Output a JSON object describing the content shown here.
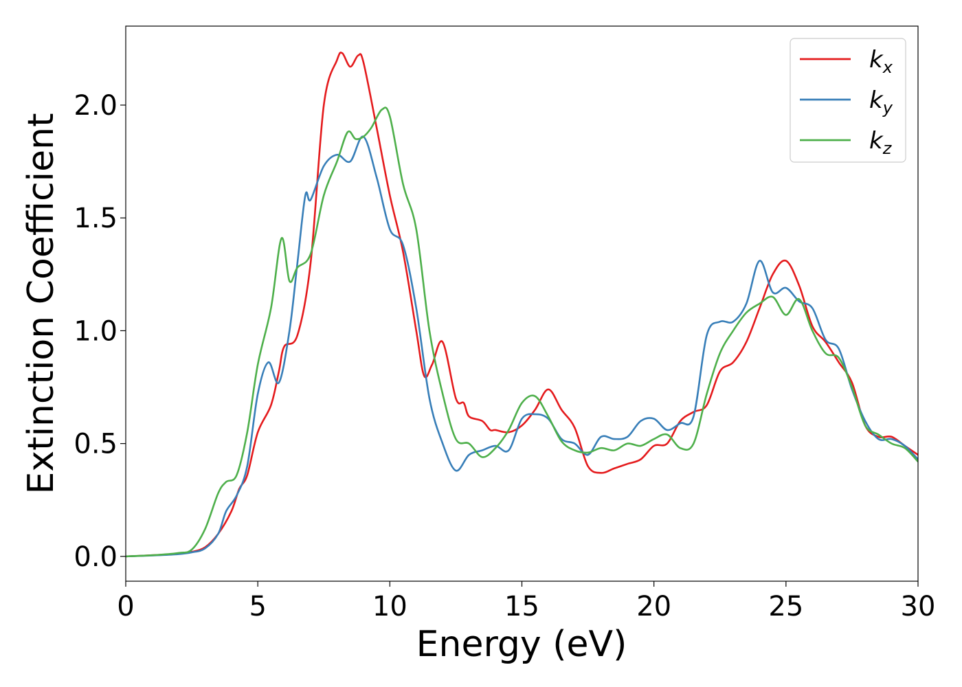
{
  "chart_data": {
    "type": "line",
    "xlabel": "Energy (eV)",
    "ylabel": "Extinction Coefficient",
    "xlim": [
      0,
      30
    ],
    "ylim": [
      -0.11,
      2.35
    ],
    "xticks": [
      0,
      5,
      10,
      15,
      20,
      25,
      30
    ],
    "xtick_labels": [
      "0",
      "5",
      "10",
      "15",
      "20",
      "25",
      "30"
    ],
    "yticks": [
      0.0,
      0.5,
      1.0,
      1.5,
      2.0
    ],
    "ytick_labels": [
      "0.0",
      "0.5",
      "1.0",
      "1.5",
      "2.0"
    ],
    "grid": false,
    "legend_position": "top-right",
    "series": [
      {
        "name": "k",
        "subscript": "x",
        "color": "#e41a1c",
        "x": [
          0,
          1,
          2,
          2.5,
          3,
          3.5,
          4,
          4.3,
          4.6,
          5,
          5.5,
          5.8,
          6,
          6.5,
          7,
          7.5,
          8,
          8.2,
          8.5,
          8.8,
          9,
          9.5,
          10,
          10.5,
          11,
          11.3,
          11.6,
          12,
          12.5,
          12.8,
          13,
          13.5,
          13.8,
          14,
          14.5,
          15,
          15.5,
          16,
          16.5,
          17,
          17.5,
          18,
          18.5,
          19,
          19.5,
          20,
          20.5,
          21,
          21.5,
          22,
          22.5,
          23,
          23.5,
          24,
          24.5,
          25,
          25.5,
          26,
          26.5,
          27,
          27.5,
          28,
          28.5,
          29,
          29.5,
          30
        ],
        "y": [
          0,
          0.005,
          0.012,
          0.02,
          0.04,
          0.1,
          0.2,
          0.3,
          0.36,
          0.55,
          0.67,
          0.82,
          0.93,
          0.98,
          1.3,
          2.0,
          2.2,
          2.23,
          2.17,
          2.22,
          2.19,
          1.9,
          1.6,
          1.35,
          1.0,
          0.8,
          0.85,
          0.95,
          0.7,
          0.68,
          0.62,
          0.6,
          0.56,
          0.56,
          0.55,
          0.58,
          0.65,
          0.74,
          0.65,
          0.57,
          0.4,
          0.37,
          0.39,
          0.41,
          0.43,
          0.49,
          0.5,
          0.6,
          0.64,
          0.67,
          0.82,
          0.86,
          0.95,
          1.1,
          1.25,
          1.31,
          1.2,
          1.02,
          0.95,
          0.86,
          0.77,
          0.58,
          0.53,
          0.53,
          0.49,
          0.45
        ]
      },
      {
        "name": "k",
        "subscript": "y",
        "color": "#377eb8",
        "x": [
          0,
          1,
          2,
          2.5,
          3,
          3.5,
          3.8,
          4.2,
          4.6,
          5,
          5.4,
          5.8,
          6.2,
          6.5,
          6.8,
          7,
          7.5,
          8,
          8.5,
          9,
          9.5,
          10,
          10.5,
          11,
          11.5,
          12,
          12.5,
          13,
          13.5,
          14,
          14.5,
          15,
          15.5,
          16,
          16.5,
          17,
          17.5,
          18,
          18.5,
          19,
          19.5,
          20,
          20.5,
          21,
          21.5,
          22,
          22.5,
          23,
          23.5,
          24,
          24.5,
          25,
          25.5,
          26,
          26.5,
          27,
          27.5,
          28,
          28.5,
          29,
          29.5,
          30
        ],
        "y": [
          0,
          0.004,
          0.01,
          0.018,
          0.035,
          0.1,
          0.2,
          0.27,
          0.4,
          0.72,
          0.86,
          0.77,
          1.0,
          1.3,
          1.6,
          1.58,
          1.73,
          1.78,
          1.75,
          1.86,
          1.68,
          1.45,
          1.38,
          1.1,
          0.7,
          0.5,
          0.38,
          0.45,
          0.47,
          0.49,
          0.47,
          0.61,
          0.63,
          0.61,
          0.52,
          0.5,
          0.45,
          0.53,
          0.52,
          0.53,
          0.6,
          0.61,
          0.56,
          0.59,
          0.62,
          0.98,
          1.04,
          1.04,
          1.12,
          1.31,
          1.17,
          1.19,
          1.13,
          1.1,
          0.96,
          0.92,
          0.74,
          0.6,
          0.52,
          0.52,
          0.49,
          0.43
        ]
      },
      {
        "name": "k",
        "subscript": "z",
        "color": "#4daf4a",
        "x": [
          0,
          1,
          2,
          2.5,
          3,
          3.5,
          3.8,
          4.2,
          4.6,
          5,
          5.5,
          5.9,
          6.2,
          6.5,
          7,
          7.5,
          8,
          8.4,
          8.7,
          9,
          9.3,
          9.7,
          10,
          10.5,
          11,
          11.5,
          12,
          12.5,
          13,
          13.5,
          14,
          14.5,
          15,
          15.5,
          16,
          16.5,
          17,
          17.5,
          18,
          18.5,
          19,
          19.5,
          20,
          20.5,
          21,
          21.5,
          22,
          22.5,
          23,
          23.5,
          24,
          24.5,
          25,
          25.5,
          26,
          26.5,
          27,
          27.5,
          28,
          28.5,
          29,
          29.5,
          30
        ],
        "y": [
          0,
          0.005,
          0.015,
          0.03,
          0.12,
          0.28,
          0.33,
          0.36,
          0.55,
          0.85,
          1.1,
          1.41,
          1.22,
          1.28,
          1.34,
          1.6,
          1.75,
          1.88,
          1.85,
          1.86,
          1.9,
          1.98,
          1.95,
          1.65,
          1.45,
          1.0,
          0.72,
          0.52,
          0.5,
          0.44,
          0.48,
          0.56,
          0.68,
          0.71,
          0.62,
          0.51,
          0.47,
          0.46,
          0.48,
          0.47,
          0.5,
          0.49,
          0.52,
          0.54,
          0.48,
          0.5,
          0.72,
          0.9,
          1.0,
          1.08,
          1.12,
          1.15,
          1.07,
          1.14,
          1.0,
          0.9,
          0.88,
          0.75,
          0.58,
          0.54,
          0.5,
          0.48,
          0.42
        ]
      }
    ]
  }
}
